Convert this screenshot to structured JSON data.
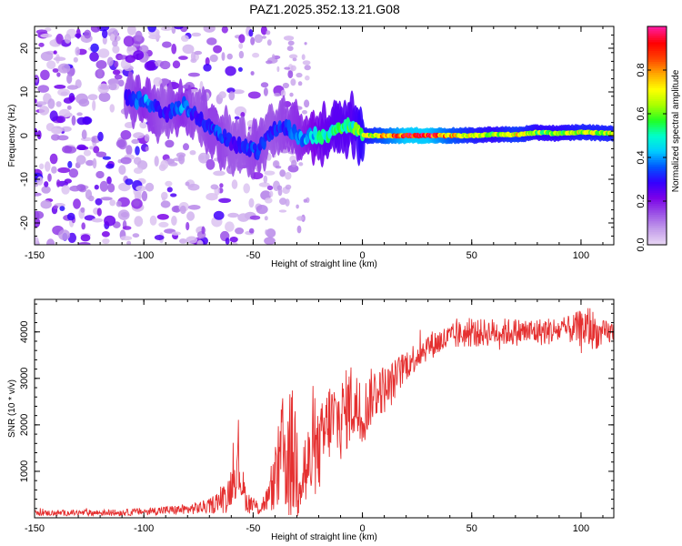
{
  "chart_data": [
    {
      "type": "heatmap",
      "title": "PAZ1.2025.352.13.21.G08",
      "xlabel": "Height of straight line (km)",
      "ylabel": "Frequency (Hz)",
      "xlim": [
        -150,
        115
      ],
      "ylim": [
        -25,
        25
      ],
      "x_ticks": [
        -150,
        -100,
        -50,
        0,
        50,
        100
      ],
      "y_ticks": [
        -20,
        -10,
        0,
        10,
        20
      ],
      "colorbar": {
        "label": "Normalized spectral amplitude",
        "range": [
          0,
          1
        ],
        "ticks": [
          "0.0",
          "0.2",
          "0.4",
          "0.6",
          "0.8"
        ],
        "colors": [
          "#e8d6f4",
          "#c29bea",
          "#9b52e6",
          "#7a00e8",
          "#3300ff",
          "#0055ff",
          "#00ccff",
          "#00ffcc",
          "#22ff22",
          "#aaff00",
          "#ffff00",
          "#ffaa00",
          "#ff4400",
          "#ff0000",
          "#ff1a99"
        ]
      },
      "ridge": [
        {
          "x": -108,
          "f": 8.5,
          "a": 0.3
        },
        {
          "x": -100,
          "f": 8,
          "a": 0.4
        },
        {
          "x": -90,
          "f": 5,
          "a": 0.3
        },
        {
          "x": -82,
          "f": 7,
          "a": 0.4
        },
        {
          "x": -75,
          "f": 4,
          "a": 0.3
        },
        {
          "x": -70,
          "f": 2,
          "a": 0.35
        },
        {
          "x": -65,
          "f": 0,
          "a": 0.35
        },
        {
          "x": -60,
          "f": -1.5,
          "a": 0.3
        },
        {
          "x": -55,
          "f": -2.5,
          "a": 0.3
        },
        {
          "x": -48,
          "f": -3.5,
          "a": 0.35
        },
        {
          "x": -42,
          "f": 1,
          "a": 0.3
        },
        {
          "x": -35,
          "f": 2,
          "a": 0.35
        },
        {
          "x": -28,
          "f": -0.5,
          "a": 0.4
        },
        {
          "x": -20,
          "f": 0,
          "a": 0.5
        },
        {
          "x": -12,
          "f": 1,
          "a": 0.55
        },
        {
          "x": -5,
          "f": 2.5,
          "a": 0.55
        },
        {
          "x": 0,
          "f": 0,
          "a": 0.65
        },
        {
          "x": 10,
          "f": 0,
          "a": 0.8
        },
        {
          "x": 20,
          "f": 0,
          "a": 0.95
        },
        {
          "x": 30,
          "f": 0,
          "a": 0.95
        },
        {
          "x": 40,
          "f": 0,
          "a": 0.8
        },
        {
          "x": 50,
          "f": 0,
          "a": 0.7
        },
        {
          "x": 60,
          "f": 0.3,
          "a": 0.65
        },
        {
          "x": 70,
          "f": 0.2,
          "a": 0.75
        },
        {
          "x": 80,
          "f": 0.7,
          "a": 0.65
        },
        {
          "x": 90,
          "f": 0.5,
          "a": 0.65
        },
        {
          "x": 100,
          "f": 0.8,
          "a": 0.7
        },
        {
          "x": 108,
          "f": 0.6,
          "a": 0.7
        },
        {
          "x": 115,
          "f": 0.5,
          "a": 0.7
        }
      ]
    },
    {
      "type": "line",
      "title": "",
      "xlabel": "Height of straight line (km)",
      "ylabel": "SNR (10 * v/v)",
      "xlim": [
        -150,
        115
      ],
      "ylim": [
        0,
        4700
      ],
      "x_ticks": [
        -150,
        -100,
        -50,
        0,
        50,
        100
      ],
      "y_ticks": [
        1000,
        2000,
        3000,
        4000
      ],
      "color": "#e53030",
      "series": [
        {
          "name": "SNR",
          "envelope": [
            {
              "x": -150,
              "base": 100,
              "noise": 60
            },
            {
              "x": -110,
              "base": 110,
              "noise": 70
            },
            {
              "x": -95,
              "base": 150,
              "noise": 90
            },
            {
              "x": -80,
              "base": 180,
              "noise": 110
            },
            {
              "x": -70,
              "base": 250,
              "noise": 160
            },
            {
              "x": -62,
              "base": 450,
              "noise": 350
            },
            {
              "x": -57,
              "base": 1100,
              "noise": 600
            },
            {
              "x": -53,
              "base": 350,
              "noise": 250
            },
            {
              "x": -47,
              "base": 200,
              "noise": 150
            },
            {
              "x": -42,
              "base": 500,
              "noise": 350
            },
            {
              "x": -36,
              "base": 1400,
              "noise": 1400
            },
            {
              "x": -31,
              "base": 1300,
              "noise": 1500
            },
            {
              "x": -26,
              "base": 1000,
              "noise": 1000
            },
            {
              "x": -20,
              "base": 1400,
              "noise": 900
            },
            {
              "x": -15,
              "base": 2100,
              "noise": 900
            },
            {
              "x": -10,
              "base": 2100,
              "noise": 900
            },
            {
              "x": -5,
              "base": 2500,
              "noise": 900
            },
            {
              "x": 0,
              "base": 2200,
              "noise": 700
            },
            {
              "x": 5,
              "base": 2700,
              "noise": 600
            },
            {
              "x": 12,
              "base": 2800,
              "noise": 500
            },
            {
              "x": 20,
              "base": 3300,
              "noise": 350
            },
            {
              "x": 30,
              "base": 3700,
              "noise": 300
            },
            {
              "x": 45,
              "base": 3950,
              "noise": 300
            },
            {
              "x": 60,
              "base": 4000,
              "noise": 300
            },
            {
              "x": 80,
              "base": 4000,
              "noise": 300
            },
            {
              "x": 95,
              "base": 4050,
              "noise": 300
            },
            {
              "x": 104,
              "base": 4100,
              "noise": 500
            },
            {
              "x": 108,
              "base": 3950,
              "noise": 300
            },
            {
              "x": 115,
              "base": 4000,
              "noise": 250
            }
          ]
        }
      ]
    }
  ]
}
